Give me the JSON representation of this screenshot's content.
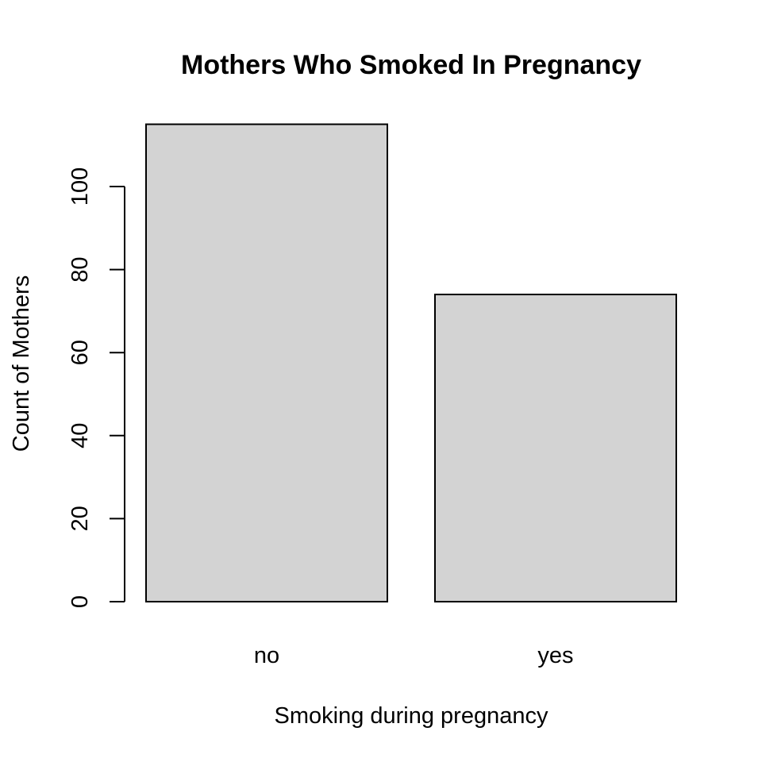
{
  "chart_data": {
    "type": "bar",
    "title": "Mothers Who Smoked In Pregnancy",
    "xlabel": "Smoking during pregnancy",
    "ylabel": "Count of Mothers",
    "categories": [
      "no",
      "yes"
    ],
    "values": [
      115,
      74
    ],
    "yticks": [
      0,
      20,
      40,
      60,
      80,
      100
    ],
    "ylim": [
      0,
      115
    ],
    "bar_color": "#d3d3d3",
    "grid": false,
    "legend": "none"
  }
}
